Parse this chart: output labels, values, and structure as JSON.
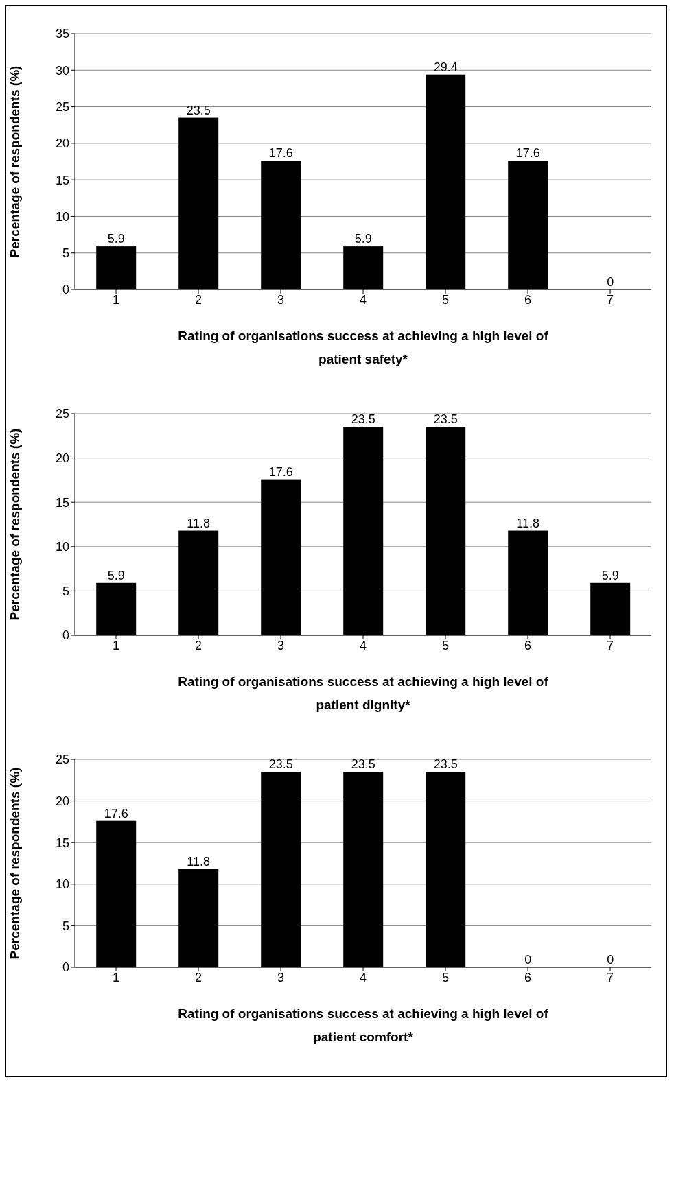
{
  "chart_data": [
    {
      "type": "bar",
      "categories": [
        "1",
        "2",
        "3",
        "4",
        "5",
        "6",
        "7"
      ],
      "values": [
        5.9,
        23.5,
        17.6,
        5.9,
        29.4,
        17.6,
        0
      ],
      "color": "#000000",
      "xlabel": "Rating of organisations success at achieving a high level of patient safety*",
      "ylabel": "Percentage of respondents (%)",
      "ylim": [
        0,
        35
      ],
      "yticks": [
        0,
        5,
        10,
        15,
        20,
        25,
        30,
        35
      ],
      "grid": "y",
      "data_labels": true
    },
    {
      "type": "bar",
      "categories": [
        "1",
        "2",
        "3",
        "4",
        "5",
        "6",
        "7"
      ],
      "values": [
        5.9,
        11.8,
        17.6,
        23.5,
        23.5,
        11.8,
        5.9
      ],
      "color": "#000000",
      "xlabel": "Rating of organisations success at achieving a high level of patient dignity*",
      "ylabel": "Percentage of respondents (%)",
      "ylim": [
        0,
        25
      ],
      "yticks": [
        0,
        5,
        10,
        15,
        20,
        25
      ],
      "grid": "y",
      "data_labels": true
    },
    {
      "type": "bar",
      "categories": [
        "1",
        "2",
        "3",
        "4",
        "5",
        "6",
        "7"
      ],
      "values": [
        17.6,
        11.8,
        23.5,
        23.5,
        23.5,
        0,
        0
      ],
      "color": "#000000",
      "xlabel": "Rating of organisations success at achieving a high level of patient comfort*",
      "ylabel": "Percentage of respondents (%)",
      "ylim": [
        0,
        25
      ],
      "yticks": [
        0,
        5,
        10,
        15,
        20,
        25
      ],
      "grid": "y",
      "data_labels": true
    }
  ]
}
